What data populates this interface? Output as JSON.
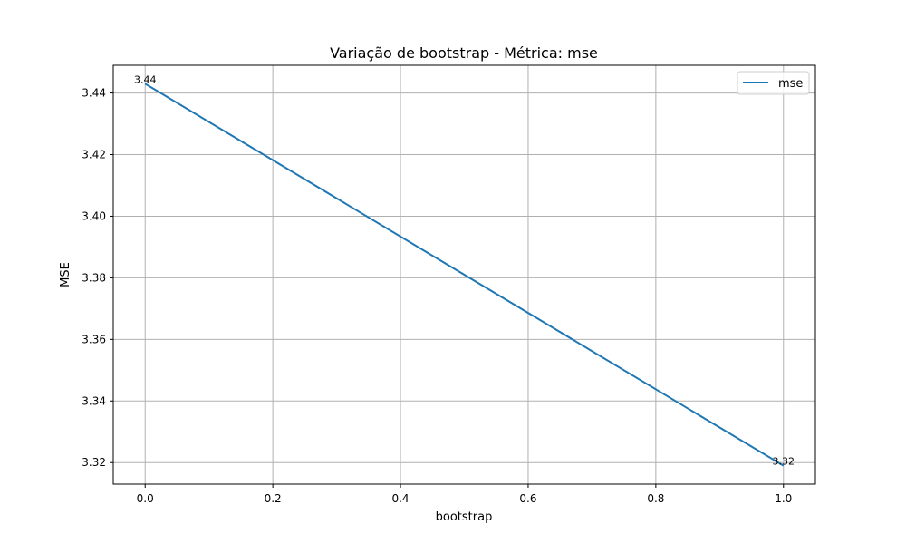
{
  "chart_data": {
    "type": "line",
    "title": "Variação de bootstrap - Métrica: mse",
    "xlabel": "bootstrap",
    "ylabel": "MSE",
    "xlim": [
      -0.05,
      1.05
    ],
    "ylim": [
      3.313,
      3.449
    ],
    "xticks": [
      0.0,
      0.2,
      0.4,
      0.6,
      0.8,
      1.0
    ],
    "xtick_labels": [
      "0.0",
      "0.2",
      "0.4",
      "0.6",
      "0.8",
      "1.0"
    ],
    "yticks": [
      3.32,
      3.34,
      3.36,
      3.38,
      3.4,
      3.42,
      3.44
    ],
    "ytick_labels": [
      "3.32",
      "3.34",
      "3.36",
      "3.38",
      "3.40",
      "3.42",
      "3.44"
    ],
    "grid": true,
    "legend_position": "top-right",
    "series": [
      {
        "name": "mse",
        "color": "#1f77b4",
        "x": [
          0,
          1
        ],
        "y": [
          3.443,
          3.319
        ],
        "data_labels": [
          "3.44",
          "3.32"
        ]
      }
    ]
  }
}
